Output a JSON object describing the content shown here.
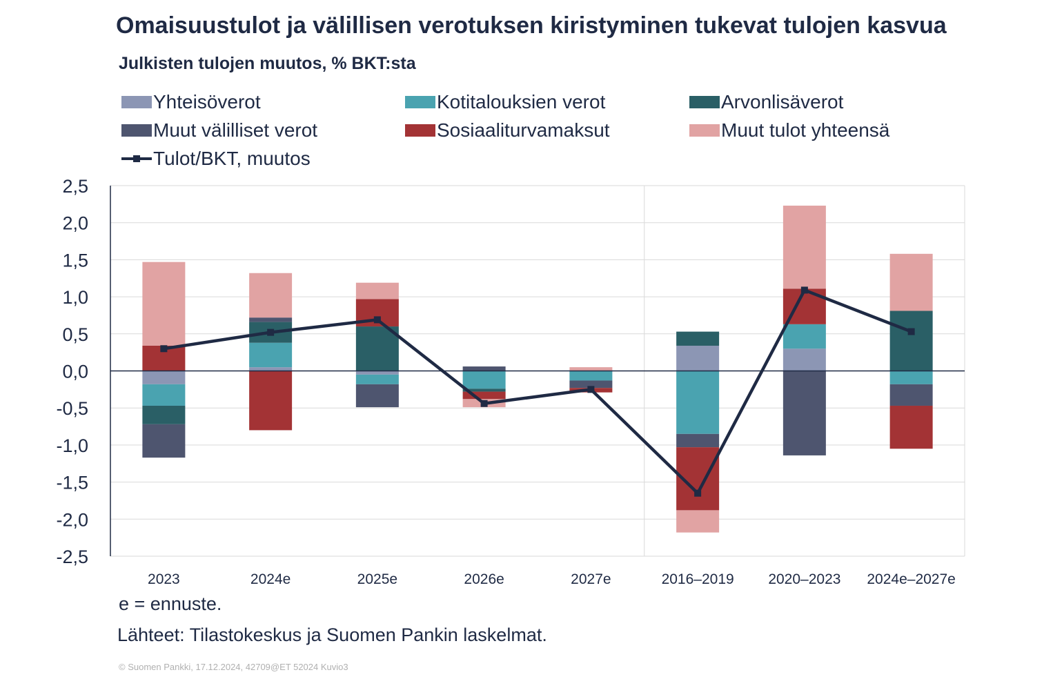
{
  "title": "Omaisuustulot ja välillisen verotuksen kiristyminen tukevat tulojen kasvua",
  "subtitle": "Julkisten tulojen muutos, % BKT:sta",
  "note": "e = ennuste.",
  "source": "Lähteet: Tilastokeskus ja Suomen Pankin laskelmat.",
  "copyright": "© Suomen Pankki, 17.12.2024, 42709@ET 52024 Kuvio3",
  "legend": [
    {
      "label": "Yhteisöverot",
      "color": "#8c96b4",
      "kind": "bar"
    },
    {
      "label": "Kotitalouksien verot",
      "color": "#4aa3b0",
      "kind": "bar"
    },
    {
      "label": "Arvonlisäverot",
      "color": "#2a5f66",
      "kind": "bar"
    },
    {
      "label": "Muut välilliset verot",
      "color": "#4e556f",
      "kind": "bar"
    },
    {
      "label": "Sosiaaliturvamaksut",
      "color": "#a33335",
      "kind": "bar"
    },
    {
      "label": "Muut tulot yhteensä",
      "color": "#e1a3a3",
      "kind": "bar"
    },
    {
      "label": "Tulot/BKT, muutos",
      "color": "#1f2a44",
      "kind": "line"
    }
  ],
  "chart_data": {
    "type": "bar",
    "stacked": true,
    "categories": [
      "2023",
      "2024e",
      "2025e",
      "2026e",
      "2027e",
      "2016–2019",
      "2020–2023",
      "2024e–2027e"
    ],
    "ylim": [
      -2.5,
      2.5
    ],
    "yticks": [
      2.5,
      2.0,
      1.5,
      1.0,
      0.5,
      0.0,
      -0.5,
      -1.0,
      -1.5,
      -2.0,
      -2.5
    ],
    "ytick_labels": [
      "2,5",
      "2,0",
      "1,5",
      "1,0",
      "0,5",
      "0,0",
      "-0,5",
      "-1,0",
      "-1,5",
      "-2,0",
      "-2,5"
    ],
    "grid": true,
    "separator_after_category": 4,
    "series": [
      {
        "name": "Yhteisöverot",
        "color": "#8c96b4",
        "values": [
          -0.18,
          0.05,
          -0.05,
          0.0,
          0.0,
          0.34,
          0.3,
          0.0
        ]
      },
      {
        "name": "Kotitalouksien verot",
        "color": "#4aa3b0",
        "values": [
          -0.29,
          0.33,
          -0.13,
          -0.24,
          -0.13,
          -0.85,
          0.33,
          -0.18
        ]
      },
      {
        "name": "Arvonlisäverot",
        "color": "#2a5f66",
        "values": [
          -0.25,
          0.28,
          0.6,
          -0.04,
          0.0,
          0.19,
          0.0,
          0.81
        ]
      },
      {
        "name": "Muut välilliset verot",
        "color": "#4e556f",
        "values": [
          -0.45,
          0.06,
          -0.31,
          0.06,
          -0.1,
          -0.18,
          -1.14,
          -0.29
        ]
      },
      {
        "name": "Sosiaaliturvamaksut",
        "color": "#a33335",
        "values": [
          0.34,
          -0.8,
          0.37,
          -0.1,
          -0.06,
          -0.85,
          0.48,
          -0.58
        ]
      },
      {
        "name": "Muut tulot yhteensä",
        "color": "#e1a3a3",
        "values": [
          1.13,
          0.6,
          0.22,
          -0.11,
          0.05,
          -0.3,
          1.12,
          0.77
        ]
      }
    ],
    "line": {
      "name": "Tulot/BKT, muutos",
      "color": "#1f2a44",
      "values": [
        0.3,
        0.52,
        0.69,
        -0.44,
        -0.25,
        -1.65,
        1.09,
        0.53
      ]
    }
  }
}
